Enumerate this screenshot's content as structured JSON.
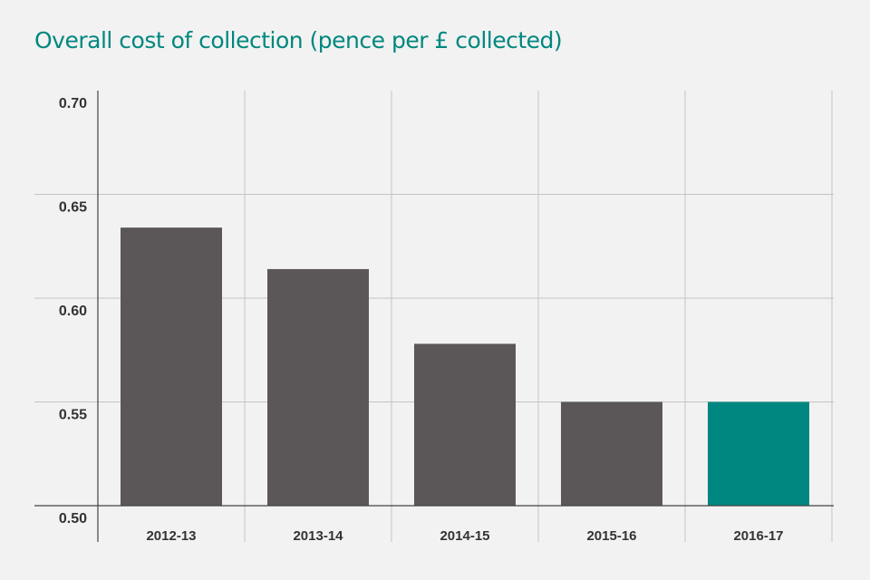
{
  "colors": {
    "background": "#f2f2f2",
    "title": "#00877f",
    "bar_default": "#5b5759",
    "bar_highlight": "#00877f",
    "grid": "#c4c4c4",
    "axis": "#444444"
  },
  "chart_data": {
    "type": "bar",
    "title": "Overall cost of collection (pence per £ collected)",
    "xlabel": "",
    "ylabel": "",
    "categories": [
      "2012-13",
      "2013-14",
      "2014-15",
      "2015-16",
      "2016-17"
    ],
    "values": [
      0.634,
      0.614,
      0.578,
      0.55,
      0.55
    ],
    "highlight_index": 4,
    "ylim": [
      0.5,
      0.7
    ],
    "yticks": [
      "0.50",
      "0.55",
      "0.60",
      "0.65",
      "0.70"
    ],
    "grid": true
  }
}
